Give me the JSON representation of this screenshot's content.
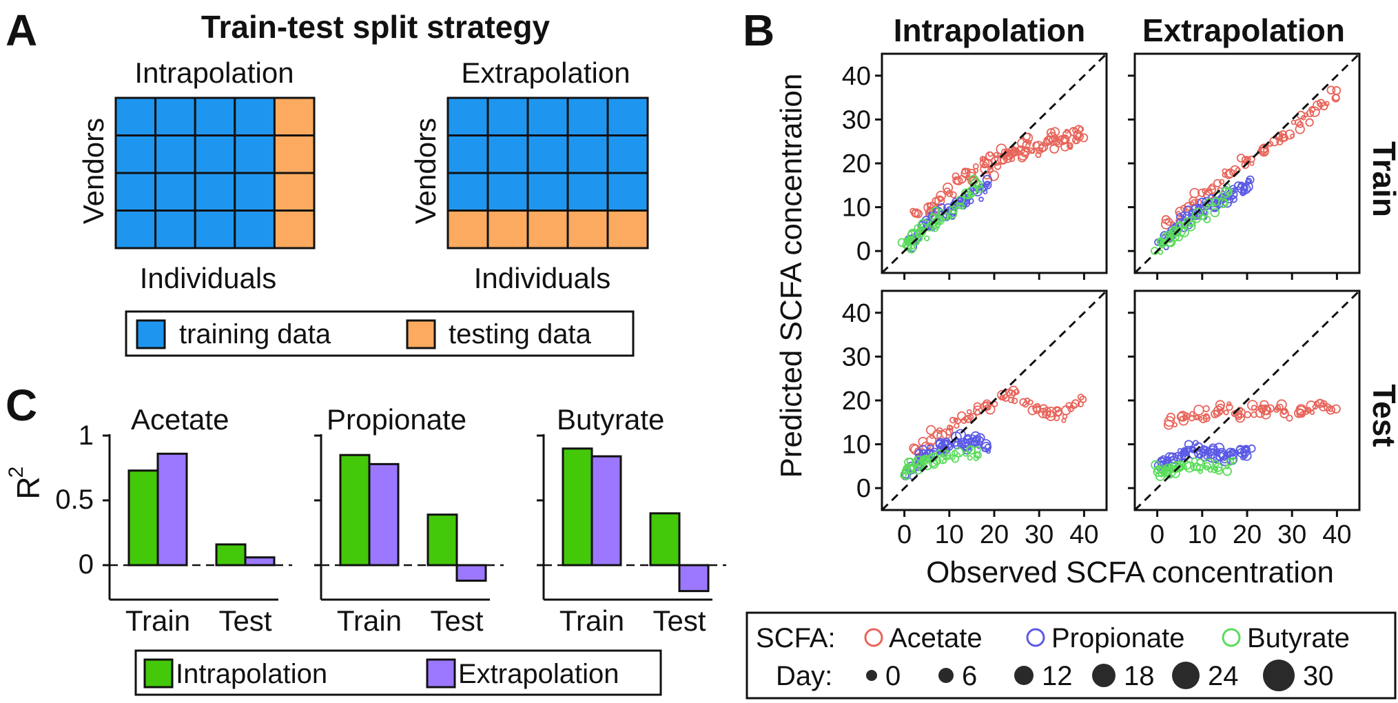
{
  "panel_a": {
    "letter": "A",
    "title": "Train-test split strategy",
    "grids": [
      {
        "title": "Intrapolation",
        "ylabel": "Vendors",
        "xlabel": "Individuals",
        "rows": 4,
        "cols": 5,
        "test": "last-column"
      },
      {
        "title": "Extrapolation",
        "ylabel": "Vendors",
        "xlabel": "Individuals",
        "rows": 4,
        "cols": 5,
        "test": "last-row"
      }
    ],
    "legend": {
      "training": "training data",
      "testing": "testing data"
    },
    "colors": {
      "training": "#1E96F0",
      "testing": "#FBAA60"
    }
  },
  "panel_b": {
    "letter": "B",
    "col_titles": [
      "Intrapolation",
      "Extrapolation"
    ],
    "row_titles": [
      "Train",
      "Test"
    ],
    "ylabel": "Predicted SCFA concentration",
    "xlabel": "Observed SCFA concentration",
    "x_ticks": [
      "0",
      "10",
      "20",
      "30",
      "40"
    ],
    "y_ticks": [
      "0",
      "10",
      "20",
      "30",
      "40"
    ],
    "legend": {
      "scfa_label": "SCFA:",
      "scfa": [
        {
          "name": "Acetate",
          "color": "#E8645A"
        },
        {
          "name": "Propionate",
          "color": "#5A5AE6"
        },
        {
          "name": "Butyrate",
          "color": "#5ADC5A"
        }
      ],
      "day_label": "Day:",
      "days": [
        "0",
        "6",
        "12",
        "18",
        "24",
        "30"
      ]
    }
  },
  "panel_c": {
    "letter": "C",
    "ylabel_base": "R",
    "ylabel_sup": "2",
    "y_ticks": [
      "0",
      "0.5",
      "1"
    ],
    "colors": {
      "Intrapolation": "#44C80A",
      "Extrapolation": "#9B78FF"
    },
    "legend": [
      "Intrapolation",
      "Extrapolation"
    ]
  },
  "chart_data": [
    {
      "type": "bar",
      "title": "Acetate",
      "categories": [
        "Train",
        "Test"
      ],
      "ylim": [
        -0.2,
        1
      ],
      "ylabel": "R2",
      "series": [
        {
          "name": "Intrapolation",
          "values": [
            0.73,
            0.16
          ]
        },
        {
          "name": "Extrapolation",
          "values": [
            0.86,
            0.06
          ]
        }
      ]
    },
    {
      "type": "bar",
      "title": "Propionate",
      "categories": [
        "Train",
        "Test"
      ],
      "ylim": [
        -0.2,
        1
      ],
      "ylabel": "R2",
      "series": [
        {
          "name": "Intrapolation",
          "values": [
            0.85,
            0.39
          ]
        },
        {
          "name": "Extrapolation",
          "values": [
            0.78,
            -0.12
          ]
        }
      ]
    },
    {
      "type": "bar",
      "title": "Butyrate",
      "categories": [
        "Train",
        "Test"
      ],
      "ylim": [
        -0.2,
        1
      ],
      "ylabel": "R2",
      "series": [
        {
          "name": "Intrapolation",
          "values": [
            0.9,
            0.4
          ]
        },
        {
          "name": "Extrapolation",
          "values": [
            0.84,
            -0.2
          ]
        }
      ]
    },
    {
      "type": "scatter",
      "title": "Intrapolation",
      "row": "Train",
      "xlim": [
        -5,
        45
      ],
      "ylim": [
        -5,
        45
      ],
      "xlabel": "Observed SCFA concentration",
      "ylabel": "Predicted SCFA concentration",
      "series": [
        {
          "name": "Acetate",
          "x": [
            3,
            5,
            6,
            8,
            10,
            12,
            14,
            15,
            17,
            18,
            19,
            20,
            21,
            22,
            23,
            24,
            25,
            26,
            27,
            28,
            29,
            30,
            32,
            33,
            34,
            35,
            36,
            37,
            38,
            39
          ],
          "y": [
            8,
            10,
            9,
            12,
            14,
            16,
            18,
            17,
            19,
            20,
            18,
            21,
            20,
            22,
            21,
            23,
            22,
            24,
            22,
            25,
            24,
            23,
            25,
            26,
            24,
            26,
            25,
            27,
            26,
            27
          ]
        },
        {
          "name": "Propionate",
          "x": [
            1,
            2,
            3,
            4,
            5,
            6,
            7,
            8,
            9,
            10,
            11,
            12,
            13,
            14,
            15,
            16,
            17,
            18
          ],
          "y": [
            2,
            3,
            4,
            5,
            6,
            6,
            7,
            8,
            9,
            9,
            10,
            11,
            11,
            12,
            13,
            13,
            14,
            15
          ]
        },
        {
          "name": "Butyrate",
          "x": [
            0.5,
            1,
            1.5,
            2,
            3,
            4,
            5,
            6,
            7,
            8,
            10,
            12,
            14,
            16
          ],
          "y": [
            1,
            2,
            2.5,
            3,
            3.5,
            4,
            5,
            6,
            7,
            8,
            9,
            11,
            13,
            15
          ]
        }
      ]
    },
    {
      "type": "scatter",
      "title": "Extrapolation",
      "row": "Train",
      "xlim": [
        -5,
        45
      ],
      "ylim": [
        -5,
        45
      ],
      "series": [
        {
          "name": "Acetate",
          "x": [
            3,
            5,
            7,
            9,
            11,
            13,
            15,
            17,
            19,
            21,
            23,
            25,
            27,
            29,
            31,
            33,
            35,
            37,
            39
          ],
          "y": [
            6,
            8,
            10,
            12,
            14,
            15,
            17,
            18,
            20,
            21,
            23,
            24,
            26,
            27,
            29,
            30,
            32,
            34,
            36
          ]
        },
        {
          "name": "Propionate",
          "x": [
            1,
            2,
            3,
            4,
            5,
            6,
            7,
            8,
            9,
            10,
            11,
            12,
            13,
            14,
            15,
            16,
            17,
            18,
            19,
            20
          ],
          "y": [
            2,
            3,
            4,
            5,
            6,
            7,
            7,
            8,
            9,
            9,
            10,
            11,
            11,
            12,
            12,
            13,
            13,
            14,
            14,
            15
          ]
        },
        {
          "name": "Butyrate",
          "x": [
            0.5,
            1,
            2,
            3,
            4,
            5,
            6,
            8,
            10,
            12,
            14,
            16
          ],
          "y": [
            1,
            2,
            3,
            3.5,
            4,
            5,
            6,
            7,
            8,
            10,
            12,
            14
          ]
        }
      ]
    },
    {
      "type": "scatter",
      "title": "Intrapolation",
      "row": "Test",
      "xlim": [
        -5,
        45
      ],
      "ylim": [
        -5,
        45
      ],
      "series": [
        {
          "name": "Acetate",
          "x": [
            3,
            5,
            7,
            9,
            11,
            13,
            15,
            17,
            19,
            21,
            23,
            25,
            27,
            29,
            31,
            33,
            35,
            37,
            39
          ],
          "y": [
            8,
            10,
            12,
            13,
            15,
            16,
            17,
            18,
            19,
            20,
            21,
            21,
            20,
            19,
            18,
            17,
            16,
            18,
            20
          ]
        },
        {
          "name": "Propionate",
          "x": [
            1,
            2,
            3,
            4,
            5,
            6,
            7,
            8,
            9,
            10,
            11,
            12,
            13,
            14,
            15,
            16,
            17,
            18
          ],
          "y": [
            3,
            5,
            6,
            7,
            8,
            8,
            9,
            9,
            10,
            10,
            11,
            11,
            10,
            10,
            11,
            11,
            10,
            9
          ]
        },
        {
          "name": "Butyrate",
          "x": [
            0.5,
            1,
            2,
            3,
            4,
            5,
            6,
            8,
            10,
            12,
            14,
            16
          ],
          "y": [
            4,
            5,
            5,
            5,
            6,
            6,
            6,
            7,
            7,
            7,
            8,
            8
          ]
        }
      ]
    },
    {
      "type": "scatter",
      "title": "Extrapolation",
      "row": "Test",
      "xlim": [
        -5,
        45
      ],
      "ylim": [
        -5,
        45
      ],
      "series": [
        {
          "name": "Acetate",
          "x": [
            3,
            5,
            7,
            9,
            11,
            13,
            15,
            17,
            19,
            21,
            23,
            25,
            27,
            29,
            31,
            33,
            35,
            37,
            39
          ],
          "y": [
            15,
            16,
            17,
            17,
            17,
            18,
            18,
            18,
            17,
            18,
            18,
            17,
            18,
            17,
            18,
            18,
            18,
            19,
            19
          ]
        },
        {
          "name": "Propionate",
          "x": [
            1,
            2,
            3,
            4,
            5,
            6,
            7,
            8,
            9,
            10,
            11,
            12,
            13,
            14,
            15,
            16,
            17,
            18,
            19,
            20
          ],
          "y": [
            6,
            6,
            7,
            7,
            8,
            8,
            8,
            9,
            9,
            8,
            8,
            8,
            8,
            7,
            7,
            7,
            8,
            8,
            8,
            8
          ]
        },
        {
          "name": "Butyrate",
          "x": [
            0.5,
            1,
            2,
            3,
            4,
            5,
            6,
            8,
            10,
            12,
            14,
            16
          ],
          "y": [
            4,
            4,
            4,
            4,
            4,
            5,
            5,
            5,
            5,
            5,
            5,
            5
          ]
        }
      ]
    }
  ]
}
